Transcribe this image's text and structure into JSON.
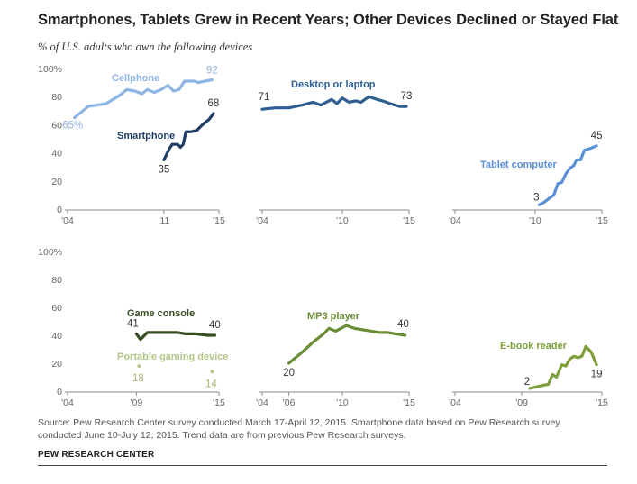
{
  "title": "Smartphones, Tablets Grew in Recent Years; Other Devices Declined or Stayed Flat",
  "subtitle": "% of U.S. adults who own the following devices",
  "source": "Source: Pew Research Center survey conducted March 17-April 12, 2015. Smartphone data based on Pew Research survey conducted June 10-July 12, 2015. Trend data are from previous Pew Research surveys.",
  "credit": "PEW RESEARCH CENTER",
  "colors": {
    "cellphone": "#8eb4e3",
    "smartphone": "#1f3d66",
    "desktop": "#2f5d8f",
    "tablet": "#5b8fd6",
    "game_console": "#344d22",
    "portable_gaming": "#b4c688",
    "mp3": "#6a8c37",
    "ebook": "#7d9e3a",
    "axis": "#888888",
    "tick": "#666666"
  },
  "chart_data": [
    {
      "type": "line",
      "ylim": [
        0,
        100
      ],
      "xlim": [
        2004,
        2015
      ],
      "y_ticks": [
        "0",
        "20",
        "40",
        "60",
        "80",
        "100%"
      ],
      "x_ticks": [
        {
          "value": 2004,
          "label": "'04"
        },
        {
          "value": 2011,
          "label": "'11"
        },
        {
          "value": 2015,
          "label": "'15"
        }
      ],
      "series": [
        {
          "name": "Cellphone",
          "color_key": "cellphone",
          "start_label": "65%",
          "end_label": "92",
          "points": [
            [
              2004.5,
              65
            ],
            [
              2005.5,
              73
            ],
            [
              2006.8,
              75
            ],
            [
              2007.8,
              81
            ],
            [
              2008.3,
              85
            ],
            [
              2008.9,
              84
            ],
            [
              2009.4,
              82
            ],
            [
              2009.8,
              85
            ],
            [
              2010.3,
              83
            ],
            [
              2010.8,
              85
            ],
            [
              2011.3,
              88
            ],
            [
              2011.7,
              84
            ],
            [
              2012.1,
              85
            ],
            [
              2012.5,
              91
            ],
            [
              2013.2,
              91
            ],
            [
              2013.5,
              90
            ],
            [
              2014.0,
              91
            ],
            [
              2014.5,
              92
            ]
          ]
        },
        {
          "name": "Smartphone",
          "color_key": "smartphone",
          "start_label": "35",
          "end_label": "68",
          "points": [
            [
              2011.0,
              35
            ],
            [
              2011.4,
              43
            ],
            [
              2011.6,
              46
            ],
            [
              2012.0,
              46
            ],
            [
              2012.2,
              44
            ],
            [
              2012.4,
              46
            ],
            [
              2012.6,
              55
            ],
            [
              2013.0,
              55
            ],
            [
              2013.4,
              56
            ],
            [
              2013.8,
              60
            ],
            [
              2014.3,
              64
            ],
            [
              2014.6,
              68
            ]
          ]
        }
      ]
    },
    {
      "type": "line",
      "ylim": [
        0,
        100
      ],
      "xlim": [
        2004,
        2015
      ],
      "x_ticks": [
        {
          "value": 2004,
          "label": "'04"
        },
        {
          "value": 2010,
          "label": "'10"
        },
        {
          "value": 2015,
          "label": "'15"
        }
      ],
      "series": [
        {
          "name": "Desktop or laptop",
          "color_key": "desktop",
          "start_label": "71",
          "end_label": "73",
          "points": [
            [
              2004.0,
              71
            ],
            [
              2005.0,
              72
            ],
            [
              2006.0,
              72
            ],
            [
              2007.0,
              74
            ],
            [
              2007.8,
              76
            ],
            [
              2008.4,
              74
            ],
            [
              2009.2,
              78
            ],
            [
              2009.6,
              75
            ],
            [
              2010.0,
              79
            ],
            [
              2010.5,
              76
            ],
            [
              2011.0,
              77
            ],
            [
              2011.4,
              76
            ],
            [
              2012.0,
              80
            ],
            [
              2012.6,
              78
            ],
            [
              2013.0,
              77
            ],
            [
              2013.6,
              75
            ],
            [
              2014.3,
              73
            ],
            [
              2014.8,
              73
            ]
          ]
        }
      ]
    },
    {
      "type": "line",
      "ylim": [
        0,
        100
      ],
      "xlim": [
        2004,
        2015
      ],
      "x_ticks": [
        {
          "value": 2004,
          "label": "'04"
        },
        {
          "value": 2010,
          "label": "'10"
        },
        {
          "value": 2015,
          "label": "'15"
        }
      ],
      "series": [
        {
          "name": "Tablet computer",
          "color_key": "tablet",
          "start_label": "3",
          "end_label": "45",
          "points": [
            [
              2010.3,
              3
            ],
            [
              2010.7,
              5
            ],
            [
              2011.1,
              8
            ],
            [
              2011.4,
              10
            ],
            [
              2011.7,
              18
            ],
            [
              2012.0,
              19
            ],
            [
              2012.3,
              25
            ],
            [
              2012.6,
              29
            ],
            [
              2012.9,
              31
            ],
            [
              2013.1,
              35
            ],
            [
              2013.4,
              35
            ],
            [
              2013.7,
              42
            ],
            [
              2014.1,
              43
            ],
            [
              2014.6,
              45
            ]
          ]
        }
      ]
    },
    {
      "type": "line",
      "ylim": [
        0,
        100
      ],
      "xlim": [
        2004,
        2015
      ],
      "y_ticks": [
        "0",
        "20",
        "40",
        "60",
        "80",
        "100%"
      ],
      "x_ticks": [
        {
          "value": 2004,
          "label": "'04"
        },
        {
          "value": 2009,
          "label": "'09"
        },
        {
          "value": 2015,
          "label": "'15"
        }
      ],
      "series": [
        {
          "name": "Game console",
          "color_key": "game_console",
          "start_label": "41",
          "end_label": "40",
          "points": [
            [
              2009.0,
              41
            ],
            [
              2009.3,
              37
            ],
            [
              2009.8,
              42
            ],
            [
              2010.5,
              42
            ],
            [
              2011.3,
              42
            ],
            [
              2012.0,
              42
            ],
            [
              2012.6,
              41
            ],
            [
              2013.3,
              41
            ],
            [
              2014.2,
              40
            ],
            [
              2014.7,
              40
            ]
          ]
        },
        {
          "name": "Portable gaming device",
          "color_key": "portable_gaming",
          "start_label": "18",
          "end_label": "14",
          "points": [
            [
              2009.2,
              18
            ],
            [
              2014.5,
              14
            ]
          ],
          "markers_only": true
        }
      ]
    },
    {
      "type": "line",
      "ylim": [
        0,
        100
      ],
      "xlim": [
        2004,
        2015
      ],
      "x_ticks": [
        {
          "value": 2004,
          "label": "'04"
        },
        {
          "value": 2006,
          "label": "'06"
        },
        {
          "value": 2010,
          "label": "'10"
        },
        {
          "value": 2015,
          "label": "'15"
        }
      ],
      "series": [
        {
          "name": "MP3 player",
          "color_key": "mp3",
          "start_label": "20",
          "end_label": "40",
          "points": [
            [
              2006.0,
              20
            ],
            [
              2007.0,
              28
            ],
            [
              2007.8,
              35
            ],
            [
              2008.6,
              41
            ],
            [
              2009.0,
              45
            ],
            [
              2009.5,
              43
            ],
            [
              2009.9,
              45
            ],
            [
              2010.3,
              47
            ],
            [
              2010.9,
              45
            ],
            [
              2011.5,
              44
            ],
            [
              2012.2,
              43
            ],
            [
              2012.8,
              42
            ],
            [
              2013.4,
              42
            ],
            [
              2014.0,
              41
            ],
            [
              2014.7,
              40
            ]
          ]
        }
      ]
    },
    {
      "type": "line",
      "ylim": [
        0,
        100
      ],
      "xlim": [
        2004,
        2015
      ],
      "x_ticks": [
        {
          "value": 2004,
          "label": "'04"
        },
        {
          "value": 2009,
          "label": "'09"
        },
        {
          "value": 2015,
          "label": "'15"
        }
      ],
      "series": [
        {
          "name": "E-book reader",
          "color_key": "ebook",
          "start_label": "2",
          "end_label": "19",
          "points": [
            [
              2009.6,
              2
            ],
            [
              2010.5,
              4
            ],
            [
              2011.0,
              5
            ],
            [
              2011.3,
              12
            ],
            [
              2011.6,
              10
            ],
            [
              2012.0,
              19
            ],
            [
              2012.3,
              18
            ],
            [
              2012.6,
              23
            ],
            [
              2012.9,
              25
            ],
            [
              2013.2,
              24
            ],
            [
              2013.5,
              25
            ],
            [
              2013.8,
              32
            ],
            [
              2014.2,
              28
            ],
            [
              2014.6,
              19
            ]
          ]
        }
      ]
    }
  ]
}
